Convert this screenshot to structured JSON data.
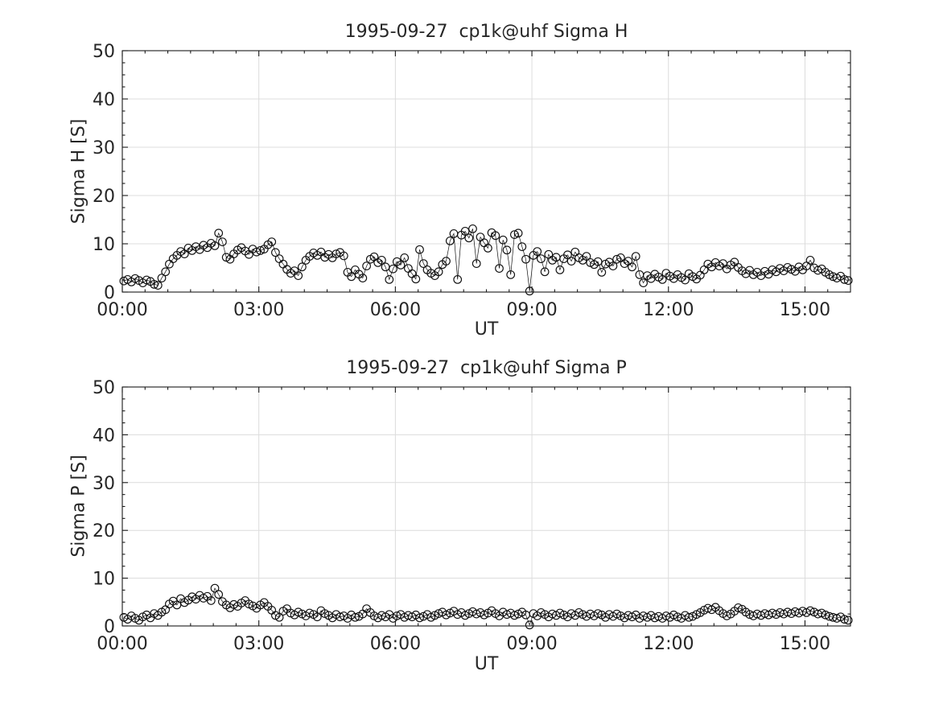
{
  "figure": {
    "background": "#ffffff",
    "text_color": "#262626",
    "axis_color": "#1a1a1a",
    "grid_color": "#dcdcdc",
    "marker_color": "#111111"
  },
  "chart_data": [
    {
      "type": "scatter",
      "title": "1995-09-27  cp1k@uhf Sigma H",
      "xlabel": "UT",
      "ylabel": "Sigma H [S]",
      "x_range_hours": [
        0,
        16
      ],
      "ylim": [
        0,
        50
      ],
      "grid": true,
      "legend": "none",
      "x_major_ticks": [
        {
          "hours": 0,
          "label": "00:00"
        },
        {
          "hours": 3,
          "label": "03:00"
        },
        {
          "hours": 6,
          "label": "06:00"
        },
        {
          "hours": 9,
          "label": "09:00"
        },
        {
          "hours": 12,
          "label": "12:00"
        },
        {
          "hours": 15,
          "label": "15:00"
        }
      ],
      "x_minor_step_hours": 0.5,
      "y_major_ticks": [
        0,
        10,
        20,
        30,
        40,
        50
      ],
      "y_minor_step": 2.5,
      "first_sample_minute": 2,
      "sample_interval_minutes": 5,
      "values": [
        2.3,
        2.6,
        2.1,
        2.8,
        2.4,
        1.9,
        2.5,
        2.2,
        1.6,
        1.4,
        2.9,
        4.2,
        5.8,
        6.9,
        7.6,
        8.4,
        7.9,
        9.1,
        8.6,
        9.4,
        8.8,
        9.7,
        9.2,
        10.1,
        9.6,
        12.2,
        10.4,
        7.2,
        6.8,
        7.9,
        8.7,
        9.2,
        8.5,
        7.8,
        8.9,
        8.3,
        8.6,
        8.9,
        9.8,
        10.4,
        8.2,
        6.9,
        5.8,
        4.7,
        3.9,
        4.4,
        3.4,
        5.2,
        6.6,
        7.4,
        8.1,
        7.6,
        8.3,
        7.2,
        7.8,
        7.1,
        7.9,
        8.2,
        7.5,
        4.1,
        3.2,
        4.6,
        3.7,
        2.9,
        5.4,
        6.8,
        7.3,
        6.1,
        6.6,
        5.2,
        2.6,
        4.8,
        6.3,
        5.6,
        7.1,
        4.9,
        3.8,
        2.7,
        8.8,
        5.9,
        4.6,
        3.9,
        3.4,
        4.2,
        5.7,
        6.4,
        10.6,
        12.1,
        2.6,
        11.8,
        12.6,
        11.2,
        13.1,
        5.9,
        11.4,
        10.2,
        9.1,
        12.3,
        11.7,
        4.9,
        10.8,
        8.7,
        3.6,
        11.9,
        12.2,
        9.4,
        6.8,
        0.2,
        7.6,
        8.4,
        6.9,
        4.2,
        7.8,
        6.6,
        7.2,
        4.6,
        6.9,
        7.7,
        6.4,
        8.3,
        7.1,
        6.6,
        7.4,
        6.1,
        5.7,
        6.3,
        4.1,
        5.8,
        6.2,
        5.4,
        6.8,
        7.1,
        5.9,
        6.4,
        5.2,
        7.4,
        3.6,
        1.9,
        3.4,
        2.8,
        3.7,
        3.1,
        2.6,
        3.9,
        3.3,
        2.8,
        3.6,
        3.0,
        2.5,
        3.8,
        3.2,
        2.7,
        3.5,
        4.6,
        5.8,
        5.2,
        6.1,
        5.4,
        5.9,
        4.8,
        5.6,
        6.2,
        5.1,
        4.4,
        3.8,
        4.5,
        3.6,
        4.1,
        3.4,
        4.3,
        3.7,
        4.6,
        4.2,
        4.9,
        4.4,
        5.1,
        4.7,
        4.3,
        5.2,
        4.6,
        5.4,
        6.6,
        5.0,
        4.5,
        4.8,
        4.1,
        3.6,
        3.2,
        2.9,
        3.3,
        2.6,
        2.4
      ]
    },
    {
      "type": "scatter",
      "title": "1995-09-27  cp1k@uhf Sigma P",
      "xlabel": "UT",
      "ylabel": "Sigma P [S]",
      "x_range_hours": [
        0,
        16
      ],
      "ylim": [
        0,
        50
      ],
      "grid": true,
      "legend": "none",
      "x_major_ticks": [
        {
          "hours": 0,
          "label": "00:00"
        },
        {
          "hours": 3,
          "label": "03:00"
        },
        {
          "hours": 6,
          "label": "06:00"
        },
        {
          "hours": 9,
          "label": "09:00"
        },
        {
          "hours": 12,
          "label": "12:00"
        },
        {
          "hours": 15,
          "label": "15:00"
        }
      ],
      "x_minor_step_hours": 0.5,
      "y_major_ticks": [
        0,
        10,
        20,
        30,
        40,
        50
      ],
      "y_minor_step": 2.5,
      "first_sample_minute": 2,
      "sample_interval_minutes": 5,
      "values": [
        1.8,
        1.4,
        2.1,
        1.6,
        1.2,
        1.9,
        2.3,
        1.7,
        2.6,
        2.2,
        2.9,
        3.4,
        4.6,
        5.2,
        4.4,
        5.7,
        4.9,
        5.4,
        6.1,
        5.6,
        6.4,
        5.8,
        6.2,
        5.3,
        7.9,
        6.6,
        5.1,
        4.4,
        3.8,
        4.5,
        4.1,
        4.8,
        5.3,
        4.6,
        4.2,
        3.7,
        4.4,
        4.9,
        4.1,
        3.3,
        2.2,
        1.8,
        3.1,
        3.6,
        2.7,
        2.3,
        2.9,
        2.5,
        2.1,
        2.7,
        2.4,
        1.9,
        3.2,
        2.6,
        2.2,
        1.7,
        2.4,
        1.9,
        2.1,
        1.6,
        2.3,
        1.8,
        2.0,
        2.5,
        3.6,
        2.8,
        2.1,
        1.7,
        2.2,
        1.9,
        2.4,
        1.6,
        2.1,
        2.4,
        1.8,
        2.2,
        1.9,
        2.3,
        1.7,
        2.0,
        2.4,
        1.8,
        2.2,
        2.6,
        2.9,
        2.3,
        2.7,
        3.1,
        2.4,
        2.8,
        2.2,
        2.6,
        3.0,
        2.5,
        2.8,
        2.3,
        2.7,
        3.2,
        2.6,
        2.1,
        2.9,
        2.4,
        2.7,
        2.2,
        2.5,
        2.9,
        2.3,
        0.2,
        2.6,
        2.1,
        2.8,
        2.4,
        1.9,
        2.5,
        2.2,
        2.7,
        2.3,
        1.9,
        2.6,
        2.2,
        2.8,
        2.4,
        2.0,
        2.5,
        2.1,
        2.6,
        2.3,
        1.8,
        2.4,
        2.0,
        2.5,
        2.1,
        1.7,
        2.2,
        1.9,
        2.3,
        1.6,
        2.1,
        1.8,
        2.2,
        1.7,
        2.0,
        1.6,
        2.1,
        1.8,
        2.3,
        1.9,
        1.6,
        2.2,
        1.8,
        2.0,
        2.4,
        2.8,
        3.3,
        3.7,
        3.4,
        3.9,
        3.2,
        2.6,
        2.1,
        2.5,
        3.1,
        3.8,
        3.5,
        2.9,
        2.4,
        2.1,
        2.5,
        2.2,
        2.6,
        2.3,
        2.7,
        2.4,
        2.8,
        2.5,
        2.9,
        2.6,
        3.0,
        2.7,
        3.1,
        2.8,
        3.2,
        2.9,
        2.5,
        2.7,
        2.3,
        2.0,
        1.8,
        1.6,
        1.9,
        1.4,
        1.2
      ]
    }
  ]
}
